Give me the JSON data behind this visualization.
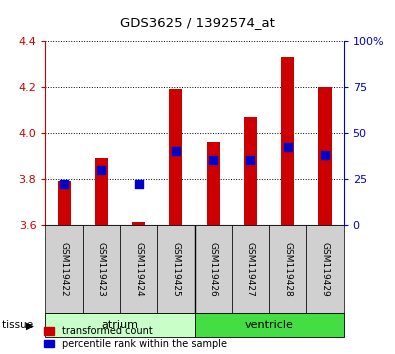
{
  "title": "GDS3625 / 1392574_at",
  "samples": [
    "GSM119422",
    "GSM119423",
    "GSM119424",
    "GSM119425",
    "GSM119426",
    "GSM119427",
    "GSM119428",
    "GSM119429"
  ],
  "transformed_count": [
    3.79,
    3.89,
    3.61,
    4.19,
    3.96,
    4.07,
    4.33,
    4.2
  ],
  "percentile_rank": [
    22,
    30,
    22,
    40,
    35,
    35,
    42,
    38
  ],
  "baseline": 3.6,
  "ylim": [
    3.6,
    4.4
  ],
  "yticks": [
    3.6,
    3.8,
    4.0,
    4.2,
    4.4
  ],
  "y2lim": [
    0,
    100
  ],
  "y2ticks": [
    0,
    25,
    50,
    75,
    100
  ],
  "y2ticklabels": [
    "0",
    "25",
    "50",
    "75",
    "100%"
  ],
  "bar_color": "#cc0000",
  "dot_color": "#0000cc",
  "atrium_color": "#c8ffc8",
  "ventricle_color": "#44dd44",
  "sample_box_color": "#d0d0d0",
  "left_color": "#cc0000",
  "right_color": "#0000cc",
  "bar_width": 0.35,
  "dot_size": 30,
  "background_color": "#ffffff"
}
